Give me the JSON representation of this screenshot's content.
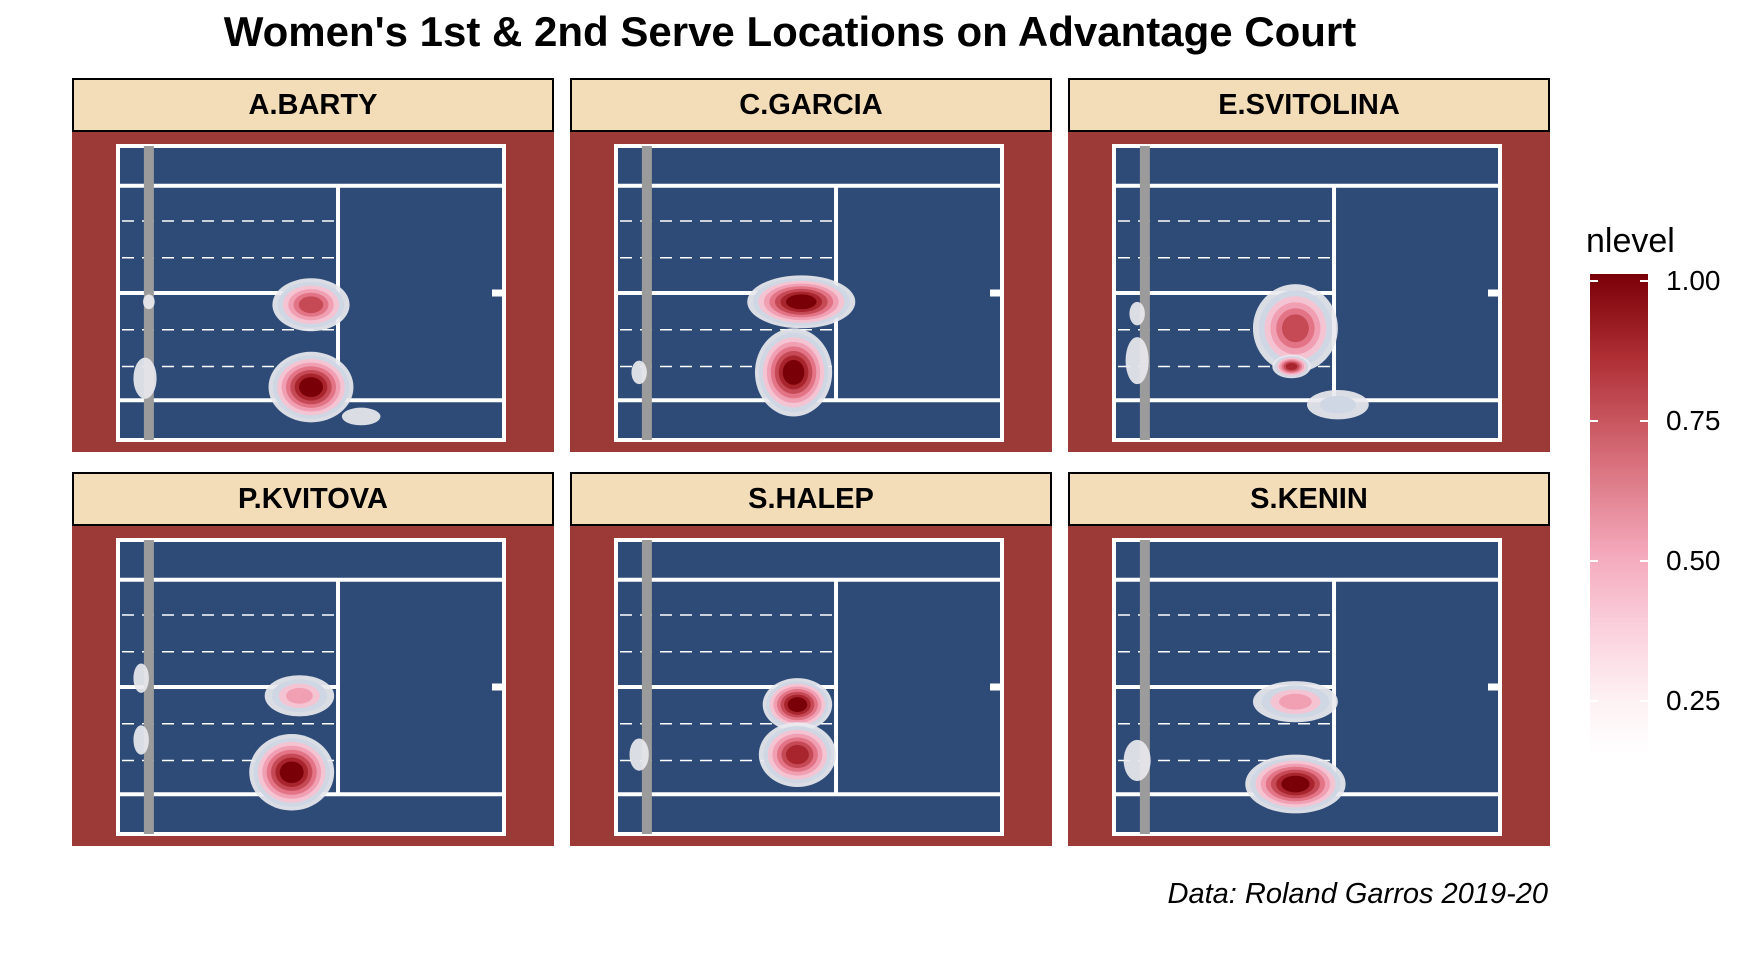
{
  "chart_data": {
    "type": "heatmap",
    "title": "Women's 1st & 2nd Serve Locations on Advantage Court",
    "caption": "Data: Roland Garros 2019-20",
    "legend": {
      "title": "nlevel",
      "placement": "right",
      "breaks": [
        "1.00",
        "0.75",
        "0.50",
        "0.25"
      ],
      "range": [
        0.1,
        1.0
      ],
      "colors": [
        "#ffffff",
        "#fbd3df",
        "#f4a8bb",
        "#d9727e",
        "#b03036",
        "#7a0007"
      ]
    },
    "colors": {
      "background": "#9c3a38",
      "court": "#2e4b78",
      "lines": "#ffffff",
      "net": "#9b9b9b",
      "strip": "#f3dcb8"
    },
    "grid": false,
    "panels": [
      {
        "player": "A.BARTY",
        "clusters": [
          {
            "x": 0.5,
            "y": 0.54,
            "sx": 0.1,
            "sy": 0.09,
            "level": 0.72
          },
          {
            "x": 0.5,
            "y": 0.82,
            "sx": 0.11,
            "sy": 0.12,
            "level": 0.95
          },
          {
            "x": 0.63,
            "y": 0.92,
            "sx": 0.05,
            "sy": 0.03,
            "level": 0.18
          },
          {
            "x": 0.07,
            "y": 0.79,
            "sx": 0.03,
            "sy": 0.07,
            "level": 0.14
          },
          {
            "x": 0.08,
            "y": 0.53,
            "sx": 0.015,
            "sy": 0.025,
            "level": 0.12
          }
        ]
      },
      {
        "player": "C.GARCIA",
        "clusters": [
          {
            "x": 0.48,
            "y": 0.53,
            "sx": 0.14,
            "sy": 0.09,
            "level": 0.95
          },
          {
            "x": 0.46,
            "y": 0.77,
            "sx": 0.1,
            "sy": 0.15,
            "level": 1.0
          },
          {
            "x": 0.06,
            "y": 0.77,
            "sx": 0.02,
            "sy": 0.04,
            "level": 0.12
          }
        ]
      },
      {
        "player": "E.SVITOLINA",
        "clusters": [
          {
            "x": 0.47,
            "y": 0.62,
            "sx": 0.11,
            "sy": 0.15,
            "level": 0.8
          },
          {
            "x": 0.46,
            "y": 0.75,
            "sx": 0.05,
            "sy": 0.04,
            "level": 0.9
          },
          {
            "x": 0.58,
            "y": 0.88,
            "sx": 0.08,
            "sy": 0.05,
            "level": 0.22
          },
          {
            "x": 0.06,
            "y": 0.73,
            "sx": 0.03,
            "sy": 0.08,
            "level": 0.14
          },
          {
            "x": 0.06,
            "y": 0.57,
            "sx": 0.02,
            "sy": 0.04,
            "level": 0.12
          }
        ]
      },
      {
        "player": "P.KVITOVA",
        "clusters": [
          {
            "x": 0.47,
            "y": 0.53,
            "sx": 0.09,
            "sy": 0.07,
            "level": 0.55
          },
          {
            "x": 0.45,
            "y": 0.79,
            "sx": 0.11,
            "sy": 0.13,
            "level": 0.98
          },
          {
            "x": 0.06,
            "y": 0.47,
            "sx": 0.02,
            "sy": 0.05,
            "level": 0.12
          },
          {
            "x": 0.06,
            "y": 0.68,
            "sx": 0.02,
            "sy": 0.05,
            "level": 0.12
          }
        ]
      },
      {
        "player": "S.HALEP",
        "clusters": [
          {
            "x": 0.47,
            "y": 0.56,
            "sx": 0.09,
            "sy": 0.09,
            "level": 0.95
          },
          {
            "x": 0.47,
            "y": 0.73,
            "sx": 0.1,
            "sy": 0.11,
            "level": 0.82
          },
          {
            "x": 0.06,
            "y": 0.73,
            "sx": 0.025,
            "sy": 0.055,
            "level": 0.13
          }
        ]
      },
      {
        "player": "S.KENIN",
        "clusters": [
          {
            "x": 0.47,
            "y": 0.55,
            "sx": 0.11,
            "sy": 0.07,
            "level": 0.45
          },
          {
            "x": 0.47,
            "y": 0.83,
            "sx": 0.13,
            "sy": 0.1,
            "level": 0.95
          },
          {
            "x": 0.06,
            "y": 0.75,
            "sx": 0.035,
            "sy": 0.07,
            "level": 0.13
          }
        ]
      }
    ]
  }
}
